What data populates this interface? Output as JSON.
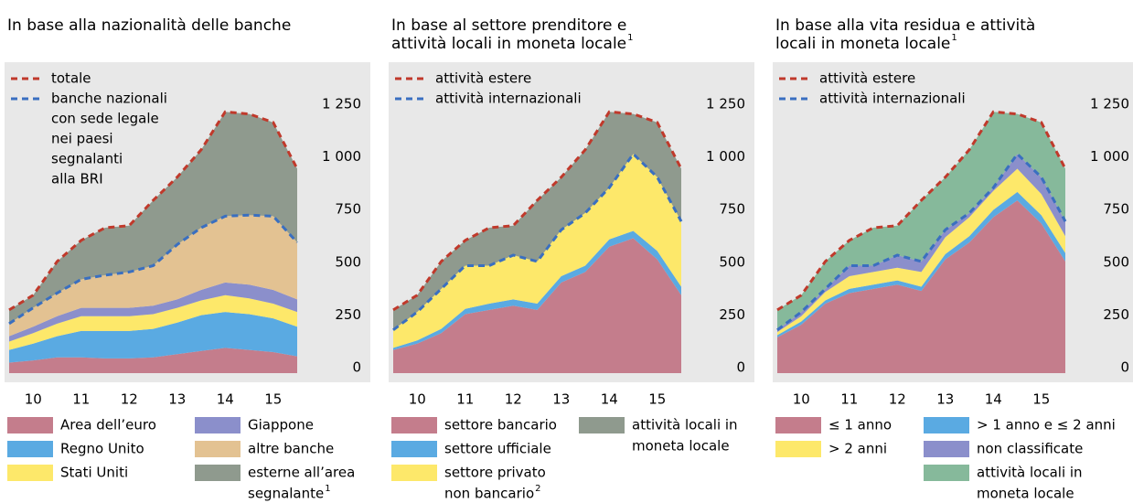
{
  "chart_data": [
    {
      "type": "area",
      "title": [
        "In base alla nazionalità delle banche"
      ],
      "x": [
        10,
        10.5,
        11,
        11.5,
        12,
        12.5,
        13,
        13.5,
        14,
        14.5,
        15,
        15.5,
        16
      ],
      "xlim": [
        10,
        16
      ],
      "xticks": [
        {
          "value": 10.5,
          "label": "10"
        },
        {
          "value": 11.5,
          "label": "11"
        },
        {
          "value": 12.5,
          "label": "12"
        },
        {
          "value": 13.5,
          "label": "13"
        },
        {
          "value": 14.5,
          "label": "14"
        },
        {
          "value": 15.5,
          "label": "15"
        }
      ],
      "ylim": [
        0,
        1250
      ],
      "yticks": [
        0,
        250,
        500,
        750,
        {
          "value": 1000,
          "label": "1 000"
        },
        {
          "value": 1250,
          "label": "1 250"
        }
      ],
      "series": [
        {
          "name": [
            "Area dell’euro"
          ],
          "kind": "area",
          "color": "#c47d8c",
          "values": [
            50,
            60,
            75,
            75,
            70,
            70,
            75,
            90,
            105,
            120,
            110,
            100,
            80
          ]
        },
        {
          "name": [
            "Regno Unito"
          ],
          "kind": "area",
          "color": "#5aaae2",
          "values": [
            60,
            80,
            100,
            125,
            130,
            130,
            135,
            150,
            170,
            170,
            170,
            160,
            140
          ]
        },
        {
          "name": [
            "Stati Uniti"
          ],
          "kind": "area",
          "color": "#fde86a",
          "values": [
            40,
            50,
            60,
            70,
            70,
            70,
            70,
            70,
            70,
            80,
            75,
            70,
            70
          ]
        },
        {
          "name": [
            "Giappone"
          ],
          "kind": "area",
          "color": "#8b8fcb",
          "values": [
            25,
            30,
            35,
            40,
            40,
            40,
            40,
            40,
            50,
            60,
            65,
            65,
            60
          ]
        },
        {
          "name": [
            "altre banche"
          ],
          "kind": "area",
          "color": "#e3c292",
          "values": [
            60,
            90,
            110,
            135,
            155,
            170,
            190,
            260,
            295,
            315,
            330,
            350,
            270
          ]
        },
        {
          "name": [
            "esterne all’area",
            "segnalante"
          ],
          "footnote": "1",
          "kind": "area",
          "color": "#8f9a8e",
          "values": [
            65,
            60,
            150,
            185,
            225,
            220,
            310,
            320,
            370,
            495,
            480,
            445,
            350
          ]
        },
        {
          "name": [
            "totale"
          ],
          "kind": "line",
          "color": "#c0392b",
          "values": [
            300,
            370,
            530,
            630,
            690,
            700,
            820,
            930,
            1060,
            1240,
            1230,
            1190,
            970
          ]
        },
        {
          "name": [
            "banche nazionali",
            "con sede legale",
            "nei paesi",
            "segnalanti",
            "alla BRI"
          ],
          "kind": "line",
          "color": "#3a6fc0",
          "values": [
            235,
            310,
            380,
            445,
            465,
            480,
            510,
            610,
            690,
            745,
            750,
            745,
            620
          ]
        }
      ]
    },
    {
      "type": "area",
      "title": [
        "In base al settore prenditore e",
        "attività locali in moneta locale"
      ],
      "title_footnote": "1",
      "x": [
        10,
        10.5,
        11,
        11.5,
        12,
        12.5,
        13,
        13.5,
        14,
        14.5,
        15,
        15.5,
        16
      ],
      "xlim": [
        10,
        16
      ],
      "xticks": [
        {
          "value": 10.5,
          "label": "10"
        },
        {
          "value": 11.5,
          "label": "11"
        },
        {
          "value": 12.5,
          "label": "12"
        },
        {
          "value": 13.5,
          "label": "13"
        },
        {
          "value": 14.5,
          "label": "14"
        },
        {
          "value": 15.5,
          "label": "15"
        }
      ],
      "ylim": [
        0,
        1250
      ],
      "yticks": [
        0,
        250,
        500,
        750,
        {
          "value": 1000,
          "label": "1 000"
        },
        {
          "value": 1250,
          "label": "1 250"
        }
      ],
      "series": [
        {
          "name": [
            "settore bancario"
          ],
          "kind": "area",
          "color": "#c47d8c",
          "values": [
            110,
            140,
            190,
            280,
            300,
            320,
            300,
            430,
            480,
            600,
            640,
            540,
            370
          ]
        },
        {
          "name": [
            "settore ufficiale"
          ],
          "kind": "area",
          "color": "#5aaae2",
          "values": [
            10,
            15,
            20,
            25,
            30,
            30,
            30,
            30,
            30,
            35,
            35,
            40,
            40
          ]
        },
        {
          "name": [
            "settore privato",
            "non bancario"
          ],
          "footnote": "2",
          "kind": "area",
          "color": "#fde86a",
          "values": [
            85,
            135,
            190,
            205,
            180,
            210,
            200,
            220,
            250,
            245,
            365,
            350,
            310
          ]
        },
        {
          "name": [
            "attività locali in",
            "moneta locale"
          ],
          "kind": "area",
          "color": "#8f9a8e",
          "values": [
            95,
            80,
            130,
            120,
            180,
            140,
            290,
            250,
            300,
            360,
            190,
            260,
            250
          ]
        },
        {
          "name": [
            "attività estere"
          ],
          "kind": "line",
          "color": "#c0392b",
          "values": [
            300,
            370,
            530,
            630,
            690,
            700,
            820,
            930,
            1060,
            1240,
            1230,
            1190,
            970
          ]
        },
        {
          "name": [
            "attività internazionali"
          ],
          "kind": "line",
          "color": "#3a6fc0",
          "values": [
            205,
            290,
            400,
            510,
            510,
            560,
            530,
            680,
            760,
            880,
            1040,
            930,
            720
          ]
        }
      ]
    },
    {
      "type": "area",
      "title": [
        "In base alla vita residua e attività",
        "locali in moneta locale"
      ],
      "title_footnote": "1",
      "x": [
        10,
        10.5,
        11,
        11.5,
        12,
        12.5,
        13,
        13.5,
        14,
        14.5,
        15,
        15.5,
        16
      ],
      "xlim": [
        10,
        16
      ],
      "xticks": [
        {
          "value": 10.5,
          "label": "10"
        },
        {
          "value": 11.5,
          "label": "11"
        },
        {
          "value": 12.5,
          "label": "12"
        },
        {
          "value": 13.5,
          "label": "13"
        },
        {
          "value": 14.5,
          "label": "14"
        },
        {
          "value": 15.5,
          "label": "15"
        }
      ],
      "ylim": [
        0,
        1250
      ],
      "yticks": [
        0,
        250,
        500,
        750,
        {
          "value": 1000,
          "label": "1 000"
        },
        {
          "value": 1250,
          "label": "1 250"
        }
      ],
      "series": [
        {
          "name": [
            "≤ 1 anno"
          ],
          "kind": "area",
          "color": "#c47d8c",
          "values": [
            170,
            230,
            330,
            380,
            400,
            420,
            390,
            540,
            620,
            740,
            820,
            710,
            530
          ]
        },
        {
          "name": [
            "> 1 anno e ≤ 2 anni"
          ],
          "kind": "area",
          "color": "#5aaae2",
          "values": [
            10,
            15,
            15,
            20,
            20,
            20,
            20,
            25,
            30,
            35,
            40,
            40,
            40
          ]
        },
        {
          "name": [
            "> 2 anni"
          ],
          "kind": "area",
          "color": "#fde86a",
          "values": [
            15,
            25,
            40,
            60,
            60,
            60,
            70,
            80,
            90,
            90,
            110,
            100,
            80
          ]
        },
        {
          "name": [
            "non classificate"
          ],
          "kind": "area",
          "color": "#8b8fcb",
          "values": [
            10,
            20,
            15,
            50,
            30,
            60,
            50,
            35,
            20,
            15,
            70,
            80,
            70
          ]
        },
        {
          "name": [
            "attività locali in",
            "moneta locale"
          ],
          "kind": "area",
          "color": "#86b99b",
          "values": [
            95,
            80,
            130,
            120,
            180,
            140,
            290,
            250,
            300,
            360,
            190,
            260,
            250
          ]
        },
        {
          "name": [
            "attività estere"
          ],
          "kind": "line",
          "color": "#c0392b",
          "values": [
            300,
            370,
            530,
            630,
            690,
            700,
            820,
            930,
            1060,
            1240,
            1230,
            1190,
            970
          ]
        },
        {
          "name": [
            "attività internazionali"
          ],
          "kind": "line",
          "color": "#3a6fc0",
          "values": [
            205,
            290,
            400,
            510,
            510,
            560,
            530,
            680,
            760,
            880,
            1040,
            930,
            720
          ]
        }
      ]
    }
  ]
}
